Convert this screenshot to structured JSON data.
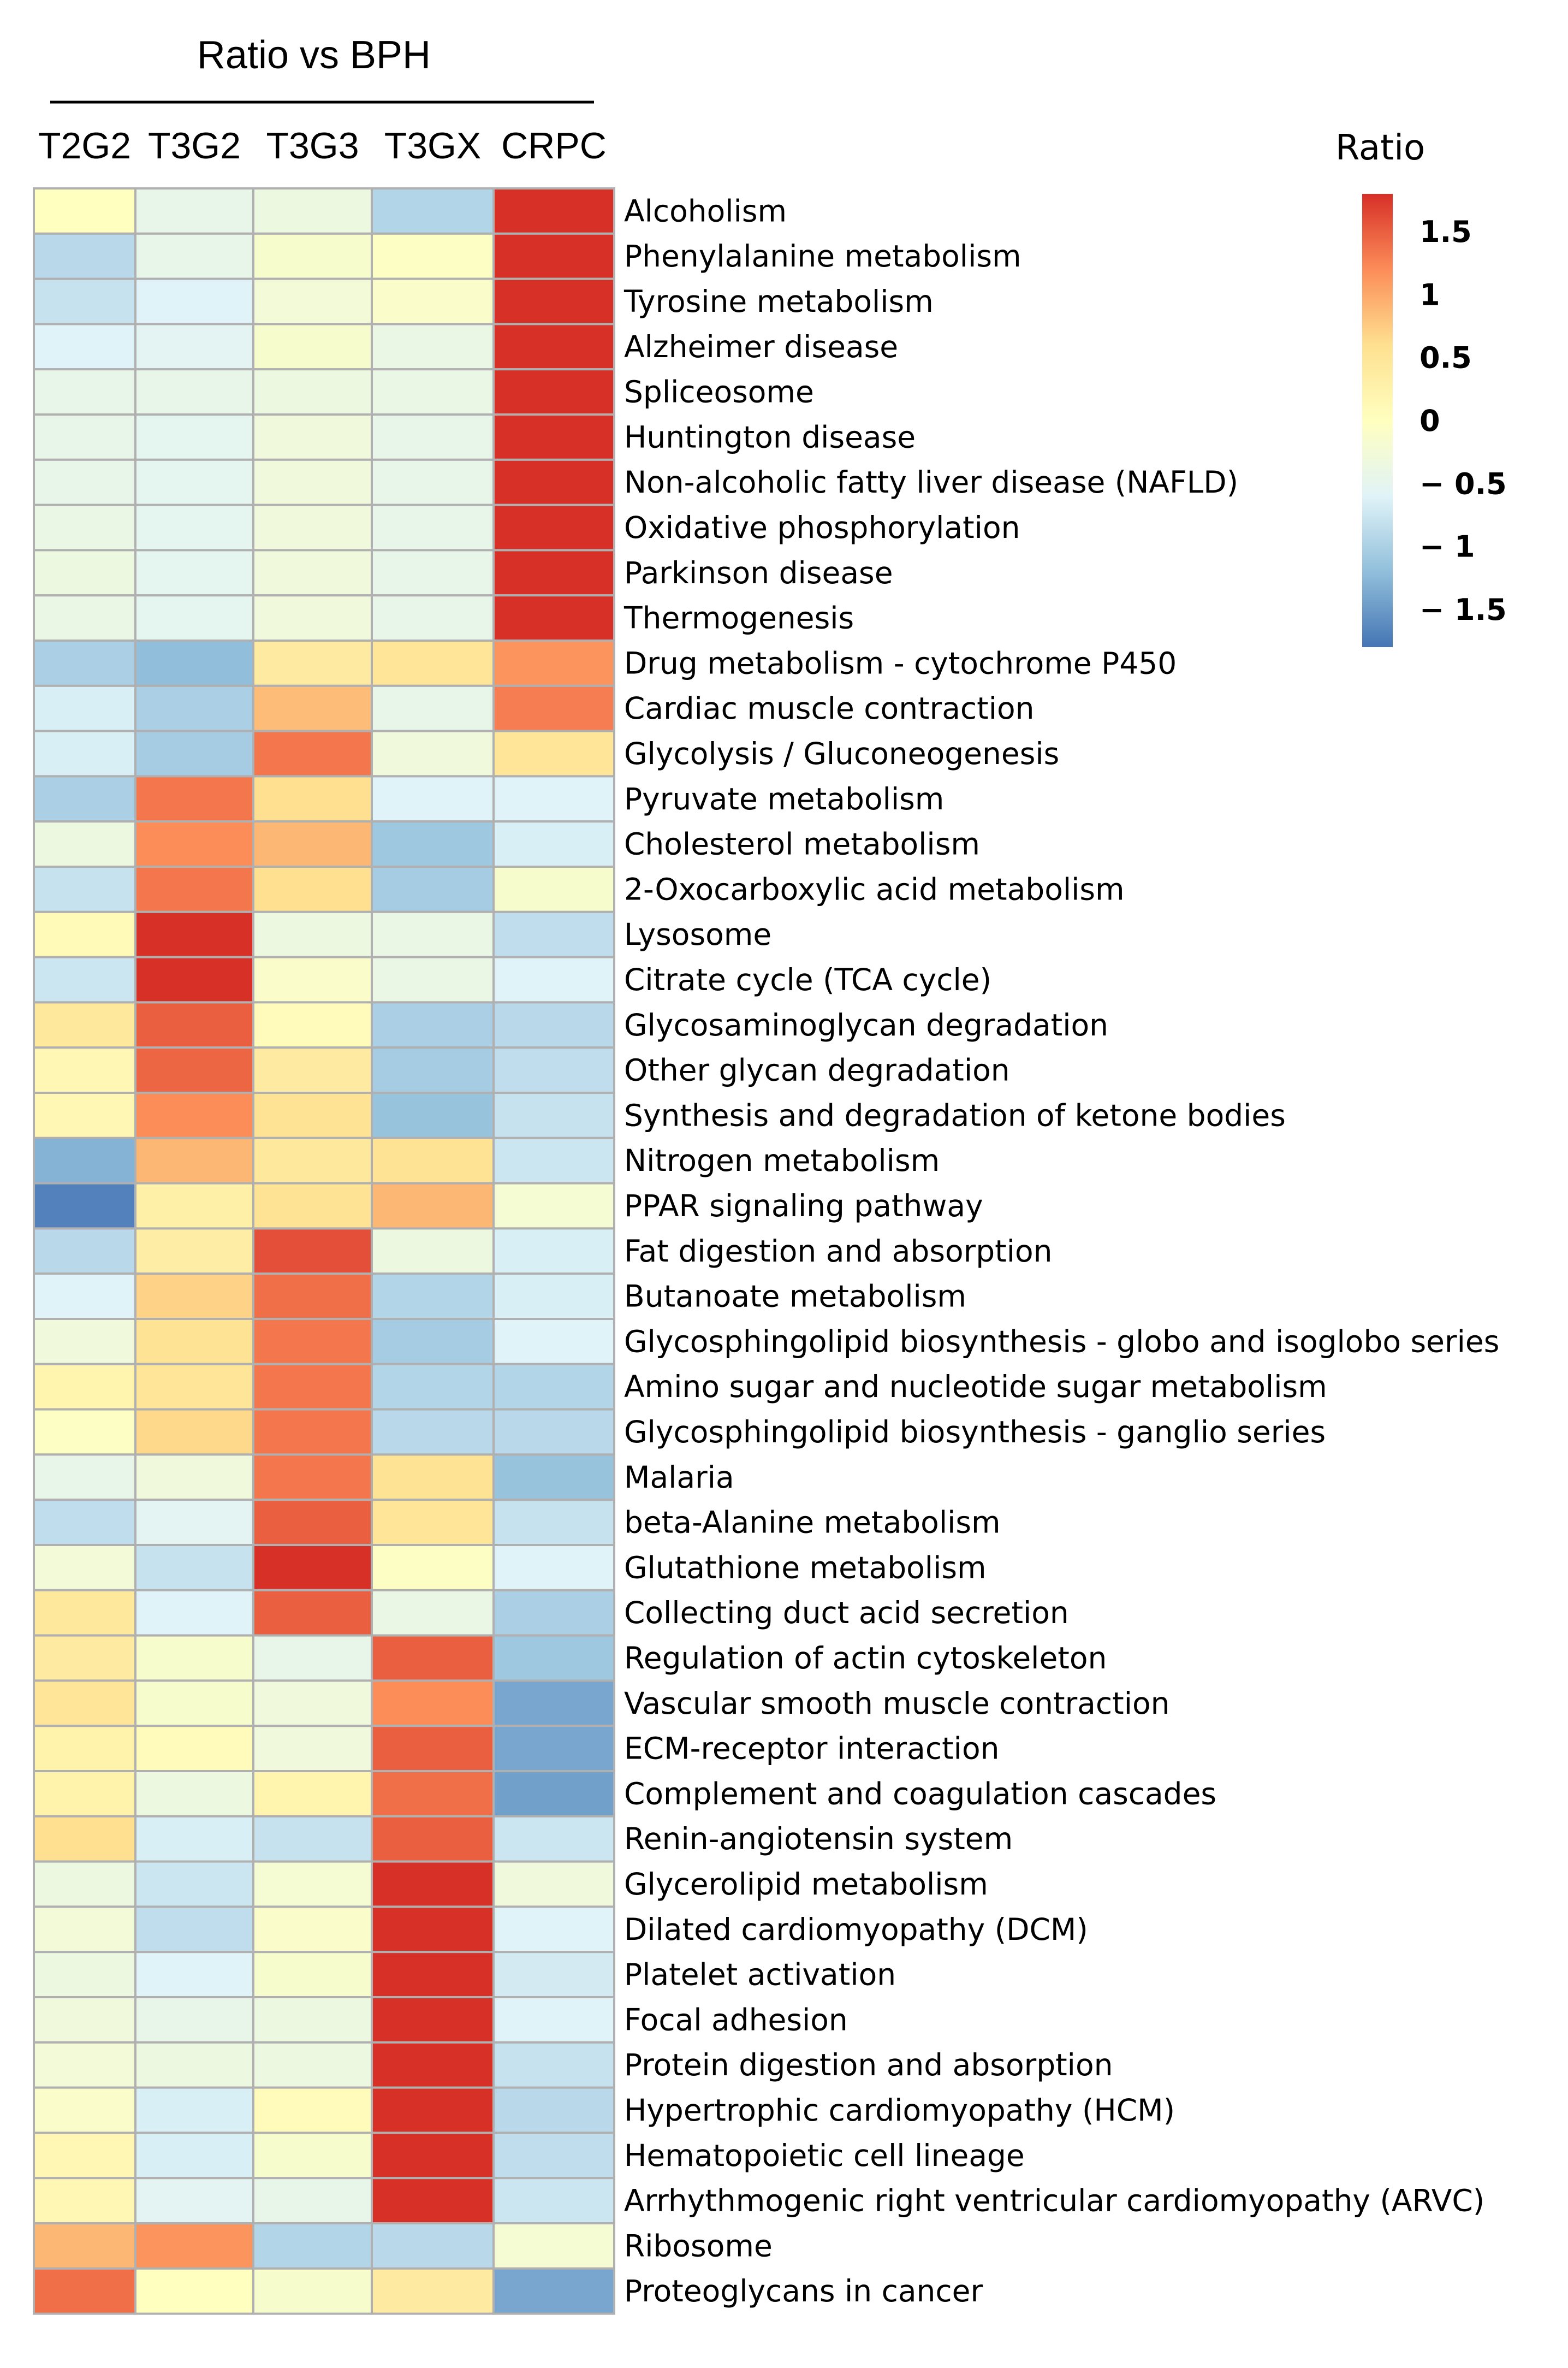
{
  "chart_data": {
    "type": "heatmap",
    "title": "Ratio vs BPH",
    "columns": [
      "T2G2",
      "T3G2",
      "T3G3",
      "T3GX",
      "CRPC"
    ],
    "legend_title": "Ratio",
    "legend_ticks": [
      {
        "label": "1.5",
        "value": 1.5
      },
      {
        "label": "1",
        "value": 1.0
      },
      {
        "label": "0.5",
        "value": 0.5
      },
      {
        "label": "0",
        "value": 0.0
      },
      {
        "label": "− 0.5",
        "value": -0.5
      },
      {
        "label": "− 1",
        "value": -1.0
      },
      {
        "label": "− 1.5",
        "value": -1.5
      }
    ],
    "value_range": [
      -1.8,
      1.8
    ],
    "legend_placement": "top-right",
    "rows": [
      {
        "label": "Alcoholism",
        "values": [
          0.0,
          -0.45,
          -0.35,
          -0.95,
          1.8
        ]
      },
      {
        "label": "Phenylalanine metabolism",
        "values": [
          -0.9,
          -0.45,
          -0.15,
          -0.05,
          1.8
        ]
      },
      {
        "label": "Tyrosine metabolism",
        "values": [
          -0.8,
          -0.6,
          -0.25,
          -0.1,
          1.8
        ]
      },
      {
        "label": "Alzheimer disease",
        "values": [
          -0.6,
          -0.55,
          -0.15,
          -0.4,
          1.8
        ]
      },
      {
        "label": "Spliceosome",
        "values": [
          -0.45,
          -0.45,
          -0.35,
          -0.4,
          1.8
        ]
      },
      {
        "label": "Huntington disease",
        "values": [
          -0.45,
          -0.5,
          -0.3,
          -0.45,
          1.8
        ]
      },
      {
        "label": "Non-alcoholic fatty liver disease (NAFLD)",
        "values": [
          -0.45,
          -0.5,
          -0.3,
          -0.45,
          1.8
        ]
      },
      {
        "label": "Oxidative phosphorylation",
        "values": [
          -0.4,
          -0.5,
          -0.3,
          -0.45,
          1.8
        ]
      },
      {
        "label": "Parkinson disease",
        "values": [
          -0.35,
          -0.5,
          -0.3,
          -0.45,
          1.8
        ]
      },
      {
        "label": "Thermogenesis",
        "values": [
          -0.4,
          -0.5,
          -0.3,
          -0.45,
          1.8
        ]
      },
      {
        "label": "Drug metabolism - cytochrome P450",
        "values": [
          -1.0,
          -1.2,
          0.4,
          0.5,
          1.15
        ]
      },
      {
        "label": "Cardiac muscle contraction",
        "values": [
          -0.65,
          -1.0,
          0.85,
          -0.45,
          1.3
        ]
      },
      {
        "label": "Glycolysis / Gluconeogenesis",
        "values": [
          -0.65,
          -1.05,
          1.35,
          -0.3,
          0.5
        ]
      },
      {
        "label": "Pyruvate metabolism",
        "values": [
          -1.0,
          1.35,
          0.6,
          -0.6,
          -0.6
        ]
      },
      {
        "label": "Cholesterol metabolism",
        "values": [
          -0.35,
          1.2,
          0.9,
          -1.1,
          -0.65
        ]
      },
      {
        "label": "2-Oxocarboxylic acid metabolism",
        "values": [
          -0.8,
          1.35,
          0.6,
          -1.05,
          -0.15
        ]
      },
      {
        "label": "Lysosome",
        "values": [
          0.1,
          1.8,
          -0.35,
          -0.4,
          -0.85
        ]
      },
      {
        "label": "Citrate cycle (TCA cycle)",
        "values": [
          -0.75,
          1.8,
          -0.1,
          -0.4,
          -0.6
        ]
      },
      {
        "label": "Glycosaminoglycan degradation",
        "values": [
          0.45,
          1.5,
          0.05,
          -1.0,
          -0.9
        ]
      },
      {
        "label": "Other glycan degradation",
        "values": [
          0.15,
          1.45,
          0.4,
          -1.05,
          -0.85
        ]
      },
      {
        "label": "Synthesis and degradation of ketone bodies",
        "values": [
          0.15,
          1.2,
          0.55,
          -1.15,
          -0.8
        ]
      },
      {
        "label": "Nitrogen metabolism",
        "values": [
          -1.3,
          0.9,
          0.45,
          0.55,
          -0.75
        ]
      },
      {
        "label": "PPAR signaling pathway",
        "values": [
          -1.7,
          0.3,
          0.55,
          0.9,
          -0.2
        ]
      },
      {
        "label": "Fat digestion and absorption",
        "values": [
          -0.9,
          0.35,
          1.6,
          -0.35,
          -0.65
        ]
      },
      {
        "label": "Butanoate metabolism",
        "values": [
          -0.6,
          0.7,
          1.4,
          -0.95,
          -0.65
        ]
      },
      {
        "label": "Glycosphingolipid biosynthesis - globo and isoglobo series",
        "values": [
          -0.3,
          0.55,
          1.35,
          -1.05,
          -0.6
        ]
      },
      {
        "label": "Amino sugar and nucleotide sugar metabolism",
        "values": [
          0.2,
          0.5,
          1.35,
          -0.95,
          -0.95
        ]
      },
      {
        "label": "Glycosphingolipid biosynthesis - ganglio series",
        "values": [
          -0.05,
          0.65,
          1.35,
          -0.9,
          -0.9
        ]
      },
      {
        "label": "Malaria",
        "values": [
          -0.45,
          -0.3,
          1.35,
          0.55,
          -1.15
        ]
      },
      {
        "label": "beta-Alanine metabolism",
        "values": [
          -0.85,
          -0.55,
          1.5,
          0.5,
          -0.8
        ]
      },
      {
        "label": "Glutathione metabolism",
        "values": [
          -0.25,
          -0.8,
          1.8,
          -0.05,
          -0.6
        ]
      },
      {
        "label": "Collecting duct acid secretion",
        "values": [
          0.45,
          -0.6,
          1.5,
          -0.4,
          -1.0
        ]
      },
      {
        "label": "Regulation of actin cytoskeleton",
        "values": [
          0.4,
          -0.15,
          -0.45,
          1.5,
          -1.1
        ]
      },
      {
        "label": "Vascular smooth muscle contraction",
        "values": [
          0.5,
          -0.15,
          -0.3,
          1.2,
          -1.4
        ]
      },
      {
        "label": "ECM-receptor interaction",
        "values": [
          0.25,
          0.05,
          -0.3,
          1.5,
          -1.4
        ]
      },
      {
        "label": "Complement and coagulation cascades",
        "values": [
          0.25,
          -0.35,
          0.2,
          1.4,
          -1.45
        ]
      },
      {
        "label": "Renin-angiotensin system",
        "values": [
          0.6,
          -0.65,
          -0.8,
          1.5,
          -0.75
        ]
      },
      {
        "label": "Glycerolipid metabolism",
        "values": [
          -0.35,
          -0.75,
          -0.2,
          1.8,
          -0.3
        ]
      },
      {
        "label": "Dilated cardiomyopathy (DCM)",
        "values": [
          -0.25,
          -0.85,
          -0.1,
          1.8,
          -0.6
        ]
      },
      {
        "label": "Platelet activation",
        "values": [
          -0.35,
          -0.6,
          -0.15,
          1.8,
          -0.7
        ]
      },
      {
        "label": "Focal adhesion",
        "values": [
          -0.3,
          -0.45,
          -0.35,
          1.85,
          -0.6
        ]
      },
      {
        "label": "Protein digestion and absorption",
        "values": [
          -0.25,
          -0.35,
          -0.35,
          1.8,
          -0.8
        ]
      },
      {
        "label": "Hypertrophic cardiomyopathy (HCM)",
        "values": [
          -0.1,
          -0.65,
          0.05,
          1.8,
          -0.9
        ]
      },
      {
        "label": "Hematopoietic cell lineage",
        "values": [
          0.15,
          -0.65,
          -0.15,
          1.8,
          -0.85
        ]
      },
      {
        "label": "Arrhythmogenic right ventricular cardiomyopathy (ARVC)",
        "values": [
          0.15,
          -0.55,
          -0.45,
          1.8,
          -0.75
        ]
      },
      {
        "label": "Ribosome",
        "values": [
          0.9,
          1.15,
          -0.95,
          -0.9,
          -0.2
        ]
      },
      {
        "label": "Proteoglycans in cancer",
        "values": [
          1.4,
          0.0,
          -0.15,
          0.4,
          -1.4
        ]
      }
    ]
  }
}
